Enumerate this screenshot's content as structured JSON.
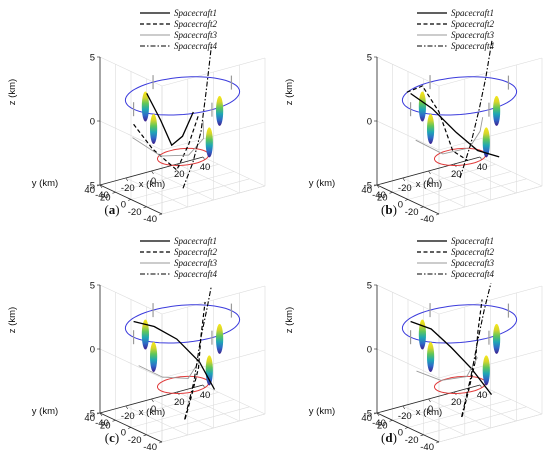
{
  "colors": {
    "upper_ring": "#3b3bdc",
    "lower_ring": "#e03a3a",
    "spacecraft1": "#000000",
    "spacecraft2": "#000000",
    "spacecraft3": "#9a9a9a",
    "spacecraft4": "#000000",
    "colormap": [
      "#3e1e8c",
      "#2f68c8",
      "#1fa7b4",
      "#5fc65a",
      "#d7d42a",
      "#f6e91a"
    ]
  },
  "chart_data": [
    {
      "type": "line3d",
      "panel_label": "a",
      "zlabel": "z (km)",
      "ylabel": "y (km)",
      "xlabel": "x (km)",
      "xlim": [
        -40,
        40
      ],
      "ylim": [
        -40,
        40
      ],
      "zlim": [
        -5,
        5
      ],
      "x_ticks": [
        "-40",
        "-20",
        "0",
        "20",
        "40"
      ],
      "y_ticks": [
        "40",
        "20",
        "0",
        "-20",
        "-40"
      ],
      "z_ticks": [
        "5",
        "0",
        "-5"
      ],
      "grid": true,
      "legend_position": "top-right",
      "series": [
        {
          "name": "Spacecraft1",
          "style": "solid",
          "points": [
            [
              -35,
              -12,
              3.5
            ],
            [
              -20,
              -5,
              0.8
            ],
            [
              -6,
              4,
              -1.8
            ],
            [
              6,
              10,
              -1.6
            ],
            [
              18,
              16,
              -0.2
            ]
          ]
        },
        {
          "name": "Spacecraft2",
          "style": "dashed",
          "points": [
            [
              -35,
              5,
              0.6
            ],
            [
              -22,
              2,
              -1.6
            ],
            [
              -8,
              -6,
              -3.4
            ],
            [
              6,
              2,
              -2.0
            ],
            [
              20,
              12,
              -0.3
            ]
          ]
        },
        {
          "name": "Spacecraft3",
          "style": "thin-solid",
          "points": [
            [
              -28,
              18,
              -1.0
            ],
            [
              -12,
              8,
              -2.6
            ],
            [
              0,
              -8,
              -2.4
            ],
            [
              14,
              -4,
              -1.6
            ],
            [
              22,
              10,
              -0.8
            ]
          ]
        },
        {
          "name": "Spacecraft4",
          "style": "dash-dot",
          "points": [
            [
              -8,
              -14,
              -4.6
            ],
            [
              2,
              -10,
              -3.0
            ],
            [
              12,
              -4,
              -1.0
            ],
            [
              22,
              6,
              1.6
            ],
            [
              32,
              16,
              4.5
            ]
          ]
        }
      ]
    },
    {
      "type": "line3d",
      "panel_label": "b",
      "zlabel": "z (km)",
      "ylabel": "y (km)",
      "xlabel": "x (km)",
      "xlim": [
        -40,
        40
      ],
      "ylim": [
        -40,
        40
      ],
      "zlim": [
        -5,
        5
      ],
      "x_ticks": [
        "-40",
        "-20",
        "0",
        "20",
        "40"
      ],
      "y_ticks": [
        "40",
        "20",
        "0",
        "-20",
        "-40"
      ],
      "z_ticks": [
        "5",
        "0",
        "-5"
      ],
      "grid": true,
      "legend_position": "top-right",
      "series": [
        {
          "name": "Spacecraft1",
          "style": "solid",
          "points": [
            [
              -35,
              5,
              3.0
            ],
            [
              -20,
              2,
              1.5
            ],
            [
              -5,
              -4,
              -0.6
            ],
            [
              8,
              -10,
              -2.2
            ],
            [
              20,
              -18,
              -2.8
            ]
          ]
        },
        {
          "name": "Spacecraft2",
          "style": "dashed",
          "points": [
            [
              -30,
              18,
              2.6
            ],
            [
              -24,
              8,
              3.2
            ],
            [
              -16,
              0,
              1.2
            ],
            [
              -10,
              -8,
              -1.8
            ],
            [
              -2,
              -14,
              -2.6
            ]
          ]
        },
        {
          "name": "Spacecraft3",
          "style": "thin-solid",
          "points": [
            [
              -25,
              15,
              -1.2
            ],
            [
              -10,
              5,
              -2.4
            ],
            [
              4,
              -6,
              -2.0
            ],
            [
              16,
              0,
              -1.2
            ],
            [
              24,
              10,
              -0.6
            ]
          ]
        },
        {
          "name": "Spacecraft4",
          "style": "dash-dot",
          "points": [
            [
              -8,
              -14,
              -3.8
            ],
            [
              4,
              -8,
              -1.6
            ],
            [
              14,
              -2,
              0.6
            ],
            [
              24,
              6,
              2.6
            ],
            [
              36,
              18,
              4.8
            ]
          ]
        }
      ]
    },
    {
      "type": "line3d",
      "panel_label": "c",
      "zlabel": "z (km)",
      "ylabel": "y (km)",
      "xlabel": "x (km)",
      "xlim": [
        -40,
        40
      ],
      "ylim": [
        -40,
        40
      ],
      "zlim": [
        -5,
        5
      ],
      "x_ticks": [
        "-40",
        "-20",
        "0",
        "20",
        "40"
      ],
      "y_ticks": [
        "40",
        "20",
        "0",
        "-20",
        "-40"
      ],
      "z_ticks": [
        "5",
        "0",
        "-5"
      ],
      "grid": true,
      "legend_position": "top-right",
      "series": [
        {
          "name": "Spacecraft1",
          "style": "solid",
          "points": [
            [
              -35,
              5,
              3.0
            ],
            [
              -22,
              0,
              2.4
            ],
            [
              -8,
              -6,
              1.2
            ],
            [
              6,
              -12,
              -0.8
            ],
            [
              14,
              -18,
              -3.0
            ]
          ]
        },
        {
          "name": "Spacecraft2",
          "style": "dashed",
          "points": [
            [
              -10,
              -20,
              -4.6
            ],
            [
              0,
              -12,
              -3.2
            ],
            [
              10,
              -4,
              -1.6
            ],
            [
              18,
              6,
              0.4
            ],
            [
              26,
              14,
              2.6
            ]
          ]
        },
        {
          "name": "Spacecraft3",
          "style": "thin-solid",
          "points": [
            [
              -25,
              15,
              -1.0
            ],
            [
              -12,
              6,
              -2.0
            ],
            [
              2,
              -4,
              -2.2
            ],
            [
              14,
              2,
              -1.4
            ]
          ]
        },
        {
          "name": "Spacecraft4",
          "style": "dash-dot",
          "points": [
            [
              -8,
              -16,
              -4.8
            ],
            [
              4,
              -8,
              -2.4
            ],
            [
              14,
              0,
              0.4
            ],
            [
              24,
              8,
              2.4
            ],
            [
              32,
              16,
              3.6
            ]
          ]
        }
      ]
    },
    {
      "type": "line3d",
      "panel_label": "d",
      "zlabel": "z (km)",
      "ylabel": "y (km)",
      "xlabel": "x (km)",
      "xlim": [
        -40,
        40
      ],
      "ylim": [
        -40,
        40
      ],
      "zlim": [
        -5,
        5
      ],
      "x_ticks": [
        "-40",
        "-20",
        "0",
        "20",
        "40"
      ],
      "y_ticks": [
        "40",
        "20",
        "0",
        "-20",
        "-40"
      ],
      "z_ticks": [
        "5",
        "0",
        "-5"
      ],
      "grid": true,
      "legend_position": "top-right",
      "series": [
        {
          "name": "Spacecraft1",
          "style": "solid",
          "points": [
            [
              -35,
              5,
              3.0
            ],
            [
              -22,
              0,
              2.2
            ],
            [
              -10,
              -6,
              0.6
            ],
            [
              2,
              -12,
              -1.2
            ],
            [
              14,
              -18,
              -3.4
            ]
          ]
        },
        {
          "name": "Spacecraft2",
          "style": "dashed",
          "points": [
            [
              -10,
              -20,
              -4.4
            ],
            [
              0,
              -12,
              -2.8
            ],
            [
              10,
              -4,
              -1.0
            ],
            [
              18,
              6,
              0.8
            ],
            [
              26,
              14,
              2.8
            ]
          ]
        },
        {
          "name": "Spacecraft3",
          "style": "thin-solid",
          "points": [
            [
              -25,
              14,
              -1.4
            ],
            [
              -12,
              4,
              -2.2
            ],
            [
              2,
              -6,
              -2.0
            ],
            [
              14,
              0,
              -1.0
            ]
          ]
        },
        {
          "name": "Spacecraft4",
          "style": "dash-dot",
          "points": [
            [
              -8,
              -16,
              -4.6
            ],
            [
              4,
              -8,
              -2.0
            ],
            [
              14,
              0,
              0.2
            ],
            [
              24,
              8,
              2.2
            ],
            [
              34,
              16,
              3.8
            ]
          ]
        }
      ]
    }
  ]
}
